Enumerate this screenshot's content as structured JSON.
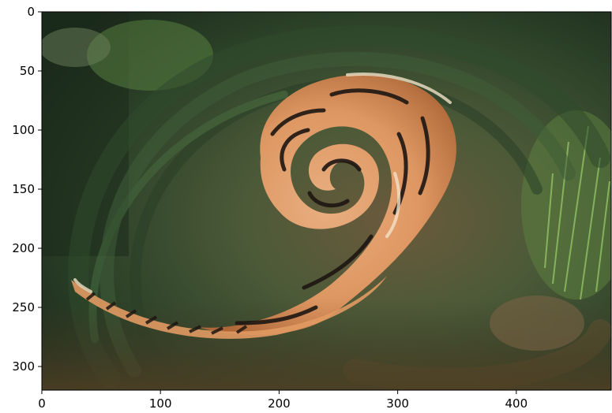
{
  "figure": {
    "type": "image",
    "description_of_content": "",
    "x_ticks": [
      {
        "value": 0,
        "label": "0"
      },
      {
        "value": 100,
        "label": "100"
      },
      {
        "value": 200,
        "label": "200"
      },
      {
        "value": 300,
        "label": "300"
      },
      {
        "value": 400,
        "label": "400"
      }
    ],
    "y_ticks": [
      {
        "value": 0,
        "label": "0"
      },
      {
        "value": 50,
        "label": "50"
      },
      {
        "value": 100,
        "label": "100"
      },
      {
        "value": 150,
        "label": "150"
      },
      {
        "value": 200,
        "label": "200"
      },
      {
        "value": 250,
        "label": "250"
      },
      {
        "value": 300,
        "label": "300"
      }
    ],
    "x_range": [
      0,
      480
    ],
    "y_range": [
      0,
      320
    ],
    "y_inverted": true,
    "colors": {
      "dark_green": "#1f3320",
      "mid_green": "#3d5a35",
      "grass_green": "#6f9a52",
      "orange": "#e7a06e",
      "dark_orange": "#b86a3a",
      "brown": "#5b4a32",
      "black_stripe": "#1d1612",
      "cream": "#f2e2c8"
    }
  }
}
